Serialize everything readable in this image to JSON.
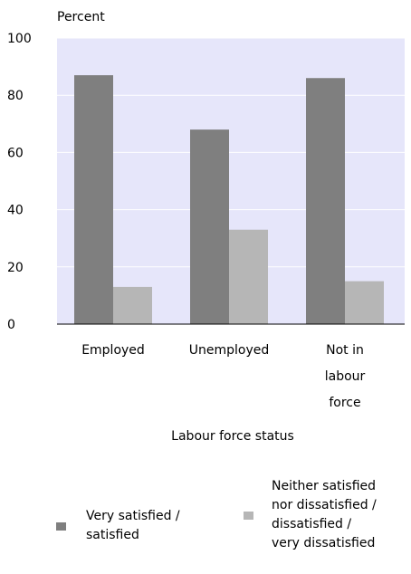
{
  "chart_data": {
    "type": "bar",
    "ylabel": "Percent",
    "xlabel": "Labour force status",
    "ylim": [
      0,
      100
    ],
    "yticks": [
      "0",
      "20",
      "40",
      "60",
      "80",
      "100"
    ],
    "categories": [
      "Employed",
      "Unemployed",
      "Not in\nlabour\nforce"
    ],
    "series": [
      {
        "name": "Very satisfied /\nsatisfied",
        "values": [
          87,
          68,
          86
        ],
        "color": "#7f7f7f"
      },
      {
        "name": "Neither satisfied\nnor dissatisfied /\ndissatisfied /\nvery dissatisfied",
        "values": [
          13,
          33,
          15
        ],
        "color": "#b6b6b6"
      }
    ],
    "grid": true,
    "plot_background": "#e6e6fa",
    "gridline_color": "#ffffff",
    "legend": "bottom"
  }
}
